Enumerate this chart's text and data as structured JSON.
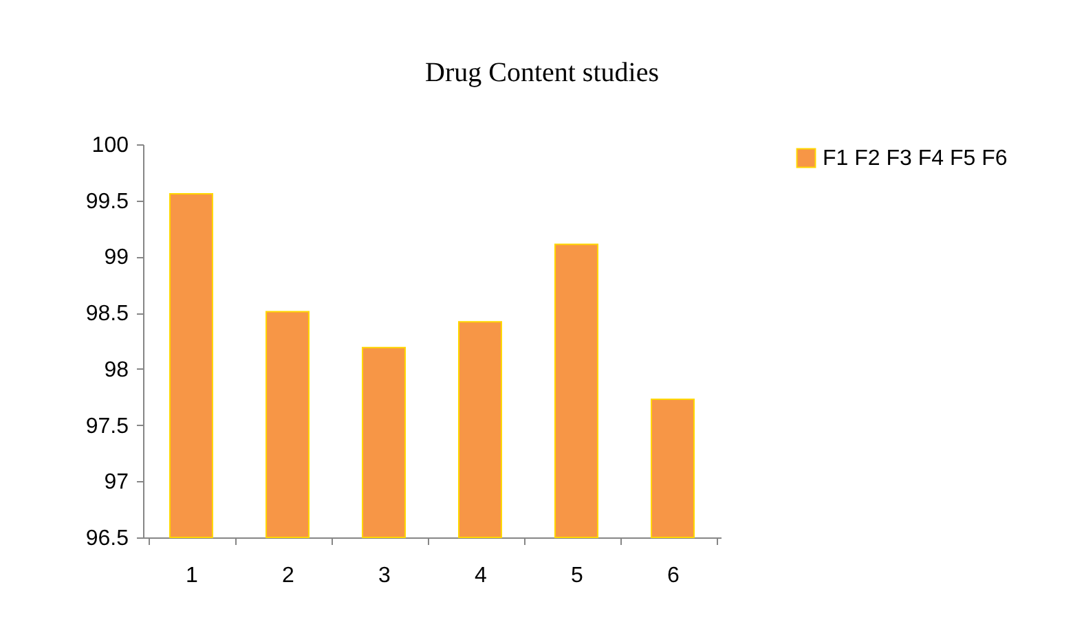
{
  "chart_data": {
    "type": "bar",
    "title": "Drug Content studies",
    "categories": [
      "1",
      "2",
      "3",
      "4",
      "5",
      "6"
    ],
    "series": [
      {
        "name": "F1 F2 F3 F4 F5 F6",
        "color": "#f79646",
        "values": [
          99.56,
          98.51,
          98.19,
          98.42,
          99.11,
          97.73
        ]
      }
    ],
    "ylim": [
      96.5,
      100
    ],
    "yticks": [
      96.5,
      97,
      97.5,
      98,
      98.5,
      99,
      99.5,
      100
    ],
    "grid": false,
    "legend": "top right"
  }
}
